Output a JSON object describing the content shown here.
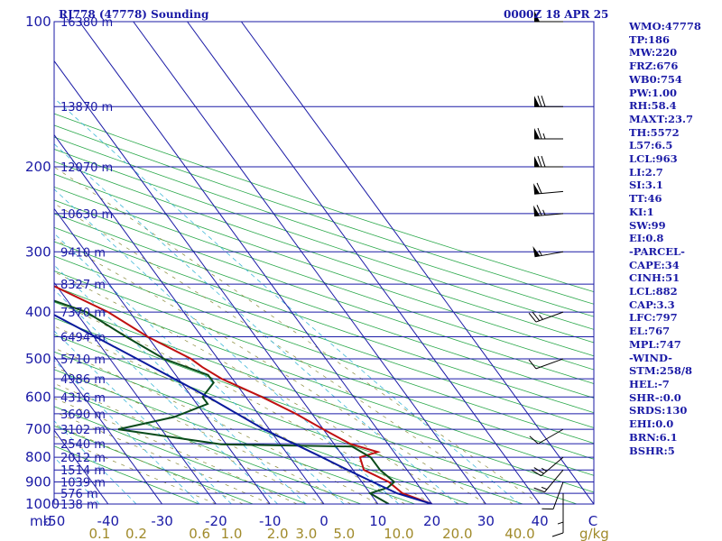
{
  "header": {
    "title": "RJ778 (47778) Sounding",
    "time": "0000Z 18 APR 25"
  },
  "side_panel": [
    "WMO:47778",
    "TP:186",
    "MW:220",
    "FRZ:676",
    "WB0:754",
    "PW:1.00",
    "RH:58.4",
    "MAXT:23.7",
    "TH:5572",
    "L57:6.5",
    "LCL:963",
    "LI:2.7",
    "SI:3.1",
    "TT:46",
    "KI:1",
    "SW:99",
    "EI:0.8",
    "-PARCEL-",
    "CAPE:34",
    "CINH:51",
    "LCL:882",
    "CAP:3.3",
    "LFC:797",
    "EL:767",
    "MPL:747",
    "-WIND-",
    "STM:258/8",
    "HEL:-7",
    "SHR-:0.0",
    "SRDS:130",
    "EHI:0.0",
    "BRN:6.1",
    "BSHR:5"
  ],
  "chart_data": {
    "type": "line",
    "title": "RJ778 (47778) Sounding",
    "subtitle": "0000Z 18 APR 25",
    "y_axis": {
      "unit_label": "mb",
      "scale": "log-pressure",
      "range_hpa": [
        1000,
        100
      ],
      "ticks": [
        100,
        200,
        300,
        400,
        500,
        600,
        700,
        800,
        900,
        1000
      ]
    },
    "x_axis": {
      "unit_label": "C",
      "range_c": [
        -50,
        50
      ],
      "ticks": [
        -50,
        -40,
        -30,
        -20,
        -10,
        0,
        10,
        20,
        30,
        40
      ]
    },
    "mixing_ratio_axis": {
      "unit_label": "g/kg",
      "ticks": [
        "0.1",
        "0.2",
        "0.6",
        "1.0",
        "2.0",
        "3.0",
        "5.0",
        "10.0",
        "20.0",
        "40.0"
      ]
    },
    "height_labels": [
      {
        "p": 100,
        "text": "16380 m"
      },
      {
        "p": 150,
        "text": "13870 m"
      },
      {
        "p": 200,
        "text": "12070 m"
      },
      {
        "p": 250,
        "text": "10630 m"
      },
      {
        "p": 300,
        "text": "9410 m"
      },
      {
        "p": 350,
        "text": "8327 m"
      },
      {
        "p": 400,
        "text": "7370 m"
      },
      {
        "p": 450,
        "text": "6494 m"
      },
      {
        "p": 500,
        "text": "5710 m"
      },
      {
        "p": 550,
        "text": "4986 m"
      },
      {
        "p": 600,
        "text": "4316 m"
      },
      {
        "p": 650,
        "text": "3690 m"
      },
      {
        "p": 700,
        "text": "3102 m"
      },
      {
        "p": 750,
        "text": "2540 m"
      },
      {
        "p": 800,
        "text": "2012 m"
      },
      {
        "p": 850,
        "text": "1514 m"
      },
      {
        "p": 900,
        "text": "1039 m"
      },
      {
        "p": 950,
        "text": "576 m"
      },
      {
        "p": 1000,
        "text": "138 m"
      }
    ],
    "series": [
      {
        "color": "#c01010",
        "points": [
          [
            1000,
            20
          ],
          [
            950,
            16
          ],
          [
            900,
            15
          ],
          [
            850,
            12
          ],
          [
            800,
            13
          ],
          [
            780,
            17
          ],
          [
            750,
            13
          ],
          [
            700,
            10
          ],
          [
            650,
            7
          ],
          [
            600,
            3
          ],
          [
            550,
            -2
          ],
          [
            520,
            -4
          ],
          [
            500,
            -5
          ],
          [
            450,
            -10
          ],
          [
            400,
            -14
          ],
          [
            350,
            -21
          ],
          [
            300,
            -32
          ],
          [
            250,
            -44
          ],
          [
            200,
            -53
          ],
          [
            180,
            -53
          ],
          [
            150,
            -45
          ],
          [
            120,
            -39
          ],
          [
            110,
            -40
          ],
          [
            103,
            -37
          ],
          [
            100,
            -37
          ]
        ]
      },
      {
        "color": "#0a4a1a",
        "points": [
          [
            1000,
            12
          ],
          [
            975,
            11
          ],
          [
            950,
            10
          ],
          [
            925,
            14
          ],
          [
            900,
            16
          ],
          [
            850,
            15
          ],
          [
            800,
            15
          ],
          [
            760,
            13
          ],
          [
            752,
            -11
          ],
          [
            700,
            -28
          ],
          [
            660,
            -16
          ],
          [
            620,
            -8
          ],
          [
            600,
            -8
          ],
          [
            560,
            -4
          ],
          [
            540,
            -4
          ],
          [
            500,
            -10
          ],
          [
            450,
            -14
          ],
          [
            400,
            -18
          ],
          [
            350,
            -29
          ],
          [
            320,
            -35
          ],
          [
            300,
            -38
          ]
        ]
      },
      {
        "color": "#0a1a9c",
        "points": [
          [
            1000,
            20
          ],
          [
            950,
            15
          ],
          [
            900,
            12
          ],
          [
            850,
            9
          ],
          [
            800,
            6
          ],
          [
            700,
            -1
          ],
          [
            600,
            -7
          ],
          [
            500,
            -15
          ],
          [
            400,
            -25
          ],
          [
            300,
            -37
          ],
          [
            250,
            -46
          ],
          [
            200,
            -56
          ],
          [
            150,
            -68
          ],
          [
            100,
            -81
          ]
        ]
      }
    ],
    "wind_barbs": [
      {
        "p": 100,
        "dir": 270,
        "kt": 50
      },
      {
        "p": 150,
        "dir": 270,
        "kt": 70
      },
      {
        "p": 175,
        "dir": 270,
        "kt": 65
      },
      {
        "p": 200,
        "dir": 270,
        "kt": 70
      },
      {
        "p": 225,
        "dir": 265,
        "kt": 60
      },
      {
        "p": 250,
        "dir": 265,
        "kt": 65
      },
      {
        "p": 300,
        "dir": 260,
        "kt": 55
      },
      {
        "p": 400,
        "dir": 250,
        "kt": 25
      },
      {
        "p": 500,
        "dir": 250,
        "kt": 10
      },
      {
        "p": 700,
        "dir": 240,
        "kt": 10
      },
      {
        "p": 800,
        "dir": 230,
        "kt": 25
      },
      {
        "p": 850,
        "dir": 220,
        "kt": 15
      },
      {
        "p": 900,
        "dir": 200,
        "kt": 10
      },
      {
        "p": 950,
        "dir": 180,
        "kt": 5
      },
      {
        "p": 1000,
        "dir": 180,
        "kt": 10
      }
    ]
  }
}
